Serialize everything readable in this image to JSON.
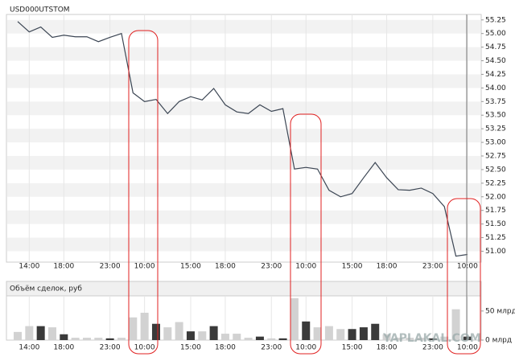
{
  "chart_data": [
    {
      "type": "line",
      "title": "USD000UTSTOM",
      "color": "#3c4654",
      "categories": [
        null,
        "14:00",
        null,
        null,
        "18:00",
        null,
        null,
        null,
        "23:00",
        null,
        null,
        "10:00",
        null,
        null,
        null,
        "15:00",
        null,
        null,
        "18:00",
        null,
        null,
        null,
        "23:00",
        null,
        null,
        "10:00",
        null,
        null,
        null,
        "15:00",
        null,
        null,
        "18:00",
        null,
        null,
        null,
        "23:00",
        null,
        null,
        "10:00"
      ],
      "values": [
        55.22,
        55.03,
        55.12,
        54.93,
        54.97,
        54.94,
        54.94,
        54.85,
        54.93,
        55.0,
        53.91,
        53.75,
        53.79,
        53.53,
        53.75,
        53.84,
        53.78,
        53.99,
        53.69,
        53.56,
        53.53,
        53.69,
        53.57,
        53.62,
        52.51,
        52.54,
        52.51,
        52.12,
        52.0,
        52.06,
        52.35,
        52.63,
        52.35,
        52.13,
        52.12,
        52.16,
        52.06,
        51.82,
        50.91,
        50.94
      ],
      "ylim": [
        50.8,
        55.35
      ],
      "yticks": [
        {
          "value": 51,
          "label": "51.00"
        },
        51.25,
        {
          "value": 51.5,
          "label": "51.50"
        },
        51.75,
        {
          "value": 52,
          "label": "52.00"
        },
        52.25,
        {
          "value": 52.5,
          "label": "52.50"
        },
        52.75,
        {
          "value": 53,
          "label": "53.00"
        },
        53.25,
        {
          "value": 53.5,
          "label": "53.50"
        },
        53.75,
        {
          "value": 54,
          "label": "54.00"
        },
        54.25,
        {
          "value": 54.5,
          "label": "54.50"
        },
        54.75,
        {
          "value": 55,
          "label": "55.00"
        },
        55.25
      ],
      "grid": true
    },
    {
      "type": "bar",
      "title": "Объём сделок, руб",
      "categories": [
        null,
        "14:00",
        null,
        null,
        "18:00",
        null,
        null,
        null,
        "23:00",
        null,
        null,
        "10:00",
        null,
        null,
        null,
        "15:00",
        null,
        null,
        "18:00",
        null,
        null,
        null,
        "23:00",
        null,
        null,
        "10:00",
        null,
        null,
        null,
        "15:00",
        null,
        null,
        "18:00",
        null,
        null,
        null,
        "23:00",
        null,
        null,
        "10:00"
      ],
      "values": [
        14,
        24,
        24,
        22,
        10,
        4,
        4,
        4,
        3,
        4,
        39,
        47,
        28,
        22,
        31,
        15,
        15,
        24,
        11,
        11,
        4,
        6,
        3,
        3,
        72,
        32,
        22,
        24,
        19,
        19,
        22,
        28,
        10,
        4,
        4,
        4,
        3,
        6,
        53,
        6
      ],
      "colors": [
        "#d2d2d2",
        "#d2d2d2",
        "#3a3a3a",
        "#d2d2d2",
        "#3a3a3a",
        "#d2d2d2",
        "#d2d2d2",
        "#d2d2d2",
        "#3a3a3a",
        "#d2d2d2",
        "#d2d2d2",
        "#d2d2d2",
        "#3a3a3a",
        "#d2d2d2",
        "#d2d2d2",
        "#3a3a3a",
        "#d2d2d2",
        "#3a3a3a",
        "#d2d2d2",
        "#d2d2d2",
        "#d2d2d2",
        "#3a3a3a",
        "#d2d2d2",
        "#3a3a3a",
        "#d2d2d2",
        "#3a3a3a",
        "#d2d2d2",
        "#d2d2d2",
        "#d2d2d2",
        "#3a3a3a",
        "#3a3a3a",
        "#3a3a3a",
        "#d2d2d2",
        "#d2d2d2",
        "#d2d2d2",
        "#d2d2d2",
        "#3a3a3a",
        "#d2d2d2",
        "#d2d2d2",
        "#3a3a3a"
      ],
      "ylim": [
        0,
        76
      ],
      "yticks": [
        {
          "value": 0,
          "label": "0 млрд"
        },
        {
          "value": 50,
          "label": "50 млрд"
        }
      ]
    }
  ],
  "watermark": "YAPLAKAL.COM"
}
